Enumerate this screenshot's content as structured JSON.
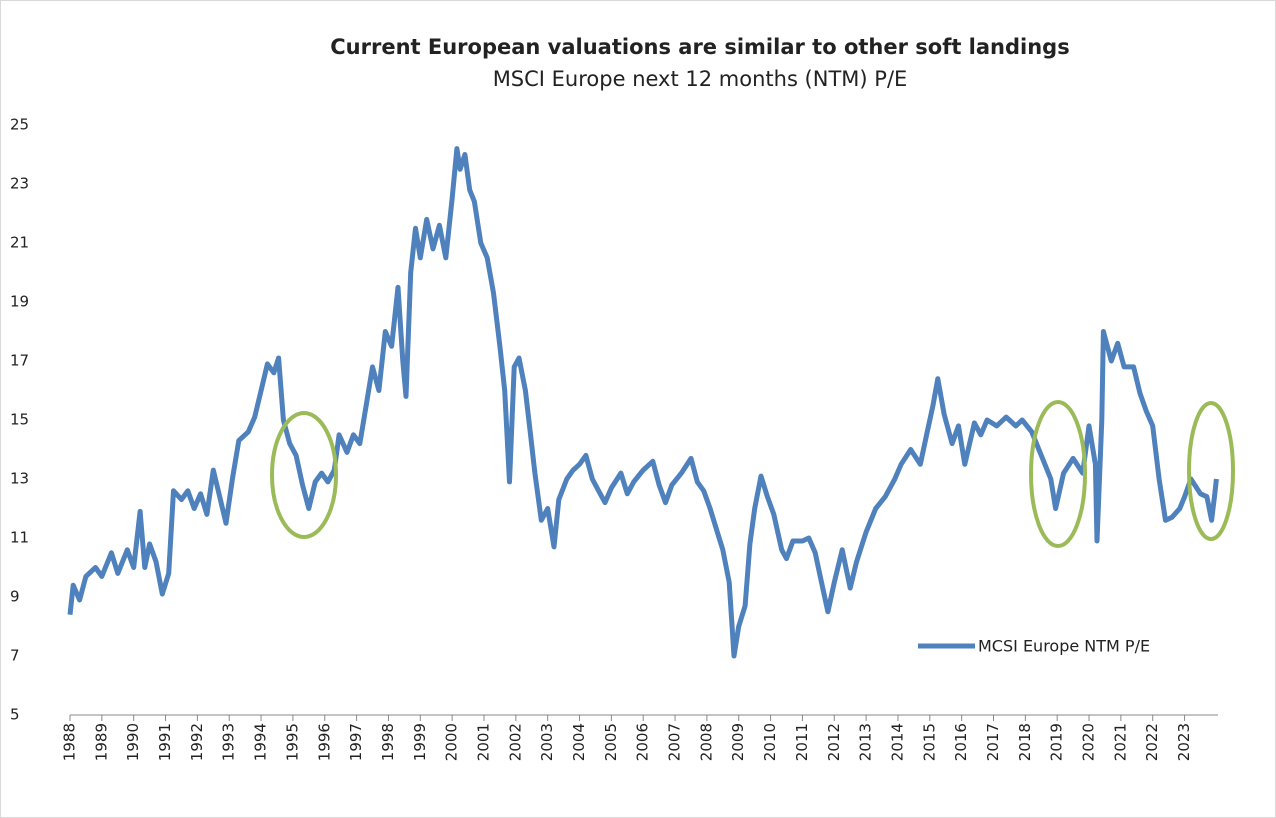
{
  "chart_data": {
    "type": "line",
    "title": "Current European valuations are similar to other soft landings",
    "subtitle": "MSCI Europe next 12 months (NTM) P/E",
    "x": [
      1988.0,
      1988.1,
      1988.3,
      1988.5,
      1988.8,
      1989.0,
      1989.3,
      1989.5,
      1989.8,
      1990.0,
      1990.2,
      1990.35,
      1990.5,
      1990.7,
      1990.9,
      1991.1,
      1991.25,
      1991.5,
      1991.7,
      1991.9,
      1992.1,
      1992.3,
      1992.5,
      1992.7,
      1992.9,
      1993.1,
      1993.3,
      1993.6,
      1993.8,
      1994.0,
      1994.2,
      1994.4,
      1994.55,
      1994.7,
      1994.9,
      1995.1,
      1995.3,
      1995.5,
      1995.7,
      1995.9,
      1996.1,
      1996.3,
      1996.45,
      1996.7,
      1996.9,
      1997.1,
      1997.3,
      1997.5,
      1997.7,
      1997.9,
      1998.1,
      1998.3,
      1998.45,
      1998.55,
      1998.7,
      1998.85,
      1999.0,
      1999.2,
      1999.4,
      1999.6,
      1999.8,
      2000.0,
      2000.15,
      2000.25,
      2000.4,
      2000.55,
      2000.7,
      2000.9,
      2001.1,
      2001.3,
      2001.5,
      2001.65,
      2001.8,
      2001.95,
      2002.1,
      2002.3,
      2002.45,
      2002.6,
      2002.8,
      2003.0,
      2003.2,
      2003.35,
      2003.6,
      2003.8,
      2004.0,
      2004.2,
      2004.4,
      2004.6,
      2004.8,
      2005.0,
      2005.3,
      2005.5,
      2005.7,
      2006.0,
      2006.3,
      2006.5,
      2006.7,
      2006.9,
      2007.2,
      2007.5,
      2007.7,
      2007.9,
      2008.1,
      2008.3,
      2008.5,
      2008.7,
      2008.85,
      2009.0,
      2009.2,
      2009.35,
      2009.5,
      2009.7,
      2009.9,
      2010.1,
      2010.35,
      2010.5,
      2010.7,
      2011.0,
      2011.2,
      2011.4,
      2011.6,
      2011.8,
      2012.0,
      2012.25,
      2012.5,
      2012.7,
      2013.0,
      2013.3,
      2013.6,
      2013.9,
      2014.1,
      2014.4,
      2014.7,
      2014.9,
      2015.1,
      2015.25,
      2015.45,
      2015.7,
      2015.9,
      2016.1,
      2016.4,
      2016.6,
      2016.8,
      2017.1,
      2017.4,
      2017.7,
      2017.9,
      2018.2,
      2018.5,
      2018.8,
      2018.95,
      2019.2,
      2019.5,
      2019.8,
      2020.0,
      2020.2,
      2020.25,
      2020.4,
      2020.45,
      2020.7,
      2020.9,
      2021.1,
      2021.4,
      2021.6,
      2021.8,
      2022.0,
      2022.2,
      2022.4,
      2022.6,
      2022.85,
      2023.0,
      2023.2,
      2023.5,
      2023.7,
      2023.85,
      2023.95,
      2024.0
    ],
    "series": [
      {
        "name": "MCSI Europe NTM P/E",
        "color": "#4f81bd",
        "values": [
          8.4,
          9.4,
          8.9,
          9.7,
          10.0,
          9.7,
          10.5,
          9.8,
          10.6,
          10.0,
          11.9,
          10.0,
          10.8,
          10.2,
          9.1,
          9.8,
          12.6,
          12.3,
          12.6,
          12.0,
          12.5,
          11.8,
          13.3,
          12.4,
          11.5,
          13.0,
          14.3,
          14.6,
          15.1,
          16.0,
          16.9,
          16.6,
          17.1,
          15.0,
          14.2,
          13.8,
          12.8,
          12.0,
          12.9,
          13.2,
          12.9,
          13.3,
          14.5,
          13.9,
          14.5,
          14.2,
          15.5,
          16.8,
          16.0,
          18.0,
          17.5,
          19.5,
          17.0,
          15.8,
          20.0,
          21.5,
          20.5,
          21.8,
          20.8,
          21.6,
          20.5,
          22.5,
          24.2,
          23.5,
          24.0,
          22.8,
          22.4,
          21.0,
          20.5,
          19.3,
          17.5,
          16.0,
          12.9,
          16.8,
          17.1,
          16.0,
          14.6,
          13.2,
          11.6,
          12.0,
          10.7,
          12.3,
          13.0,
          13.3,
          13.5,
          13.8,
          13.0,
          12.6,
          12.2,
          12.7,
          13.2,
          12.5,
          12.9,
          13.3,
          13.6,
          12.8,
          12.2,
          12.8,
          13.2,
          13.7,
          12.9,
          12.6,
          12.0,
          11.3,
          10.6,
          9.5,
          7.0,
          8.0,
          8.7,
          10.8,
          12.0,
          13.1,
          12.4,
          11.8,
          10.6,
          10.3,
          10.9,
          10.9,
          11.0,
          10.5,
          9.5,
          8.5,
          9.5,
          10.6,
          9.3,
          10.2,
          11.2,
          12.0,
          12.4,
          13.0,
          13.5,
          14.0,
          13.5,
          14.5,
          15.5,
          16.4,
          15.2,
          14.2,
          14.8,
          13.5,
          14.9,
          14.5,
          15.0,
          14.8,
          15.1,
          14.8,
          15.0,
          14.6,
          13.8,
          13.0,
          12.0,
          13.2,
          13.7,
          13.2,
          14.8,
          13.5,
          10.9,
          15.0,
          18.0,
          17.0,
          17.6,
          16.8,
          16.8,
          15.9,
          15.3,
          14.8,
          13.0,
          11.6,
          11.7,
          12.0,
          12.4,
          13.0,
          12.5,
          12.4,
          11.6,
          12.5,
          13.0
        ]
      }
    ],
    "xlim": [
      1988,
      2024.05
    ],
    "xticks": [
      1988,
      1989,
      1990,
      1991,
      1992,
      1993,
      1994,
      1995,
      1996,
      1997,
      1998,
      1999,
      2000,
      2001,
      2002,
      2003,
      2004,
      2005,
      2006,
      2007,
      2008,
      2009,
      2010,
      2011,
      2012,
      2013,
      2014,
      2015,
      2016,
      2017,
      2018,
      2019,
      2020,
      2021,
      2022,
      2023
    ],
    "ylim": [
      5,
      25
    ],
    "yticks": [
      5,
      7,
      9,
      11,
      13,
      15,
      17,
      19,
      21,
      23,
      25
    ]
  }
}
